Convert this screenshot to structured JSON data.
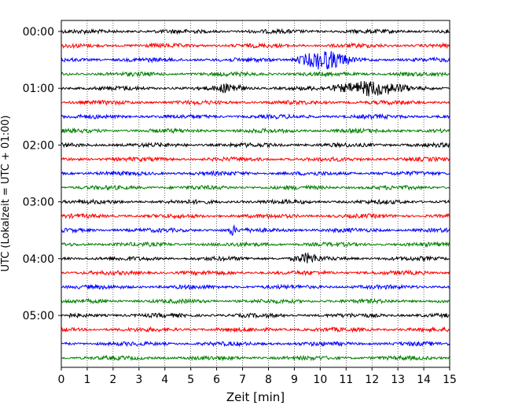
{
  "chart_data": {
    "type": "line",
    "subtype": "helicorder",
    "xlabel": "Zeit  [min]",
    "ylabel": "UTC (Lokalzeit = UTC + 01:00)",
    "xlim": [
      0,
      15
    ],
    "x_ticks": [
      "0",
      "1",
      "2",
      "3",
      "4",
      "5",
      "6",
      "7",
      "8",
      "9",
      "10",
      "11",
      "12",
      "13",
      "14",
      "15"
    ],
    "x_grid": true,
    "row_interval_minutes": 15,
    "hour_labels": [
      "00:00",
      "01:00",
      "02:00",
      "03:00",
      "04:00",
      "05:00"
    ],
    "trace_colors": [
      "#000000",
      "#ff0000",
      "#0000ff",
      "#008000"
    ],
    "row_count": 24,
    "events": [
      {
        "row": 2,
        "start_min": 8.9,
        "end_min": 11.4,
        "peak_min": 10.1,
        "relative_amplitude": 3.0
      },
      {
        "row": 4,
        "start_min": 5.8,
        "end_min": 7.2,
        "peak_min": 6.5,
        "relative_amplitude": 1.3
      },
      {
        "row": 4,
        "start_min": 10.2,
        "end_min": 13.5,
        "peak_min": 11.9,
        "relative_amplitude": 2.4
      },
      {
        "row": 14,
        "start_min": 6.4,
        "end_min": 6.8,
        "peak_min": 6.6,
        "relative_amplitude": 1.5
      },
      {
        "row": 16,
        "start_min": 8.8,
        "end_min": 10.0,
        "peak_min": 9.5,
        "relative_amplitude": 1.3
      }
    ]
  }
}
